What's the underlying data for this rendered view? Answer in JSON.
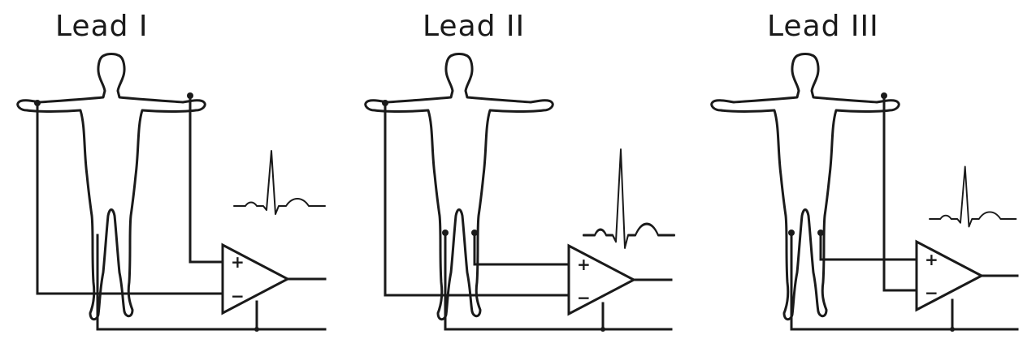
{
  "diagram": {
    "leads": [
      {
        "title": "Lead I",
        "plus_label": "+",
        "minus_label": "−"
      },
      {
        "title": "Lead II",
        "plus_label": "+",
        "minus_label": "−"
      },
      {
        "title": "Lead III",
        "plus_label": "+",
        "minus_label": "−"
      }
    ],
    "colors": {
      "ink": "#1a1a1a",
      "background": "#ffffff"
    }
  }
}
